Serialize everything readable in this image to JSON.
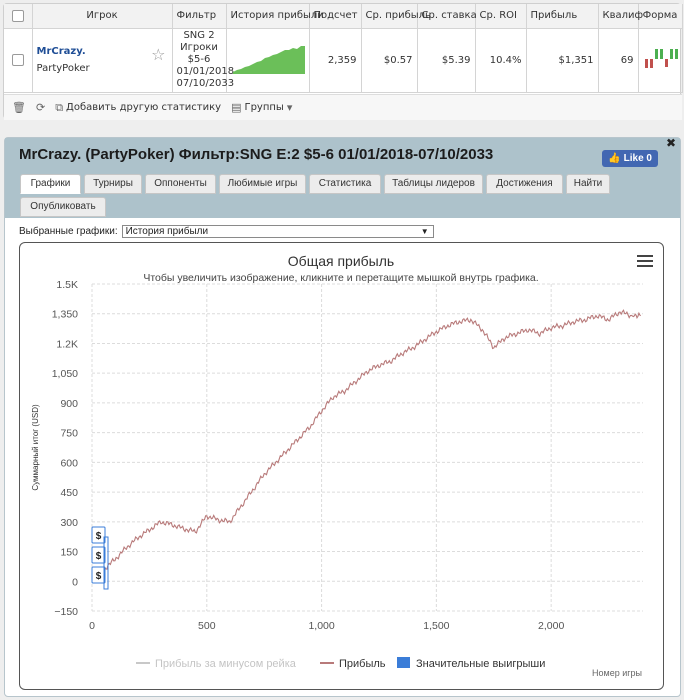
{
  "table": {
    "headers": [
      "",
      "Игрок",
      "Фильтр",
      "История прибыли",
      "Подсчет",
      "Ср. прибыль",
      "Ср. ставка",
      "Ср. ROI",
      "Прибыль",
      "Квалиф",
      "Форма"
    ],
    "row": {
      "player_name": "MrCrazy.",
      "room": "PartyPoker",
      "filter_lines": [
        "SNG 2",
        "Игроки",
        "$5-6",
        "01/01/2018",
        "07/10/2033"
      ],
      "count": "2,359",
      "avg_profit": "$0.57",
      "avg_stake": "$5.39",
      "avg_roi": "10.4%",
      "profit": "$1,351",
      "qualif": "69"
    }
  },
  "toolbar": {
    "add_stats": "Добавить другую статистику",
    "groups": "Группы"
  },
  "panel": {
    "title": "MrCrazy. (PartyPoker) Фильтр:SNG E:2 $5-6 01/01/2018-07/10/2033",
    "like_label": "Like 0",
    "tabs": [
      "Графики",
      "Турниры",
      "Оппоненты",
      "Любимые игры",
      "Статистика",
      "Таблицы лидеров",
      "Достижения",
      "Найти",
      "Опубликовать"
    ],
    "select_label": "Выбранные графики:",
    "select_value": "История прибыли"
  },
  "chart_data": {
    "type": "line",
    "title": "Общая прибыль",
    "subtitle": "Чтобы увеличить изображение, кликните и перетащите мышкой внутрь графика.",
    "ylabel": "Суммарный итог (USD)",
    "xlabel": "Номер игры",
    "ylim": [
      -150,
      1500
    ],
    "xlim": [
      0,
      2400
    ],
    "yticks": [
      "1.5K",
      "1,350",
      "1.2K",
      "1,050",
      "900",
      "750",
      "600",
      "450",
      "300",
      "150",
      "0",
      "−150"
    ],
    "xticks": [
      "0",
      "500",
      "1,000",
      "1,500",
      "2,000"
    ],
    "legend": [
      "Прибыль за минусом рейка",
      "Прибыль",
      "Значительные выигрыши"
    ],
    "legend_position": "bottom",
    "series": [
      {
        "name": "Прибыль",
        "color": "#b87a7a",
        "x": [
          0,
          50,
          100,
          150,
          200,
          250,
          300,
          350,
          400,
          450,
          500,
          550,
          600,
          650,
          700,
          750,
          800,
          850,
          900,
          950,
          1000,
          1050,
          1100,
          1150,
          1200,
          1250,
          1300,
          1350,
          1400,
          1450,
          1500,
          1550,
          1600,
          1650,
          1700,
          1750,
          1800,
          1850,
          1900,
          1950,
          2000,
          2050,
          2100,
          2150,
          2200,
          2250,
          2300,
          2350,
          2390
        ],
        "y": [
          0,
          60,
          110,
          170,
          220,
          260,
          300,
          285,
          265,
          250,
          330,
          310,
          300,
          380,
          460,
          540,
          600,
          660,
          720,
          780,
          860,
          930,
          960,
          1010,
          1060,
          1090,
          1110,
          1150,
          1180,
          1220,
          1260,
          1290,
          1310,
          1320,
          1270,
          1180,
          1230,
          1250,
          1270,
          1250,
          1280,
          1290,
          1310,
          1320,
          1340,
          1320,
          1360,
          1340,
          1340
        ]
      }
    ],
    "big_wins": [
      "$",
      "$",
      "$"
    ],
    "colors": {
      "profit_line": "#b87a7a",
      "rake_line": "#c8c8c8",
      "big_win": "#3b7dd8"
    }
  }
}
